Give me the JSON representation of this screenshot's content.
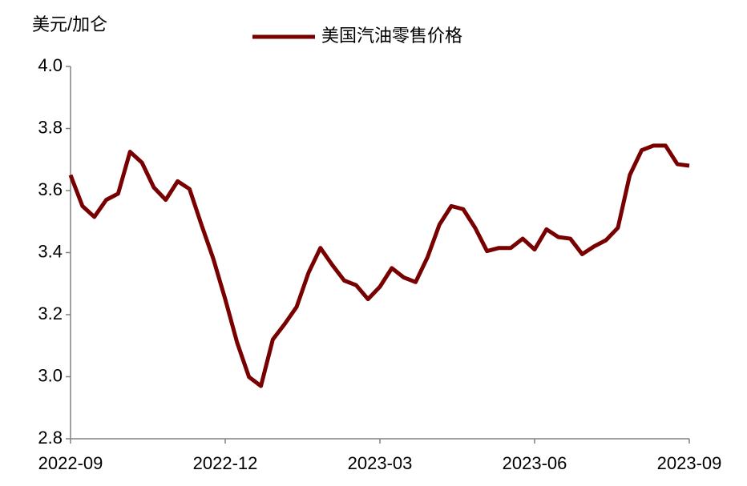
{
  "chart_data": {
    "type": "line",
    "y_label": "美元/加仑",
    "categories": [
      "2022-09",
      null,
      null,
      null,
      null,
      null,
      null,
      null,
      null,
      null,
      null,
      null,
      null,
      "2022-12",
      null,
      null,
      null,
      null,
      null,
      null,
      null,
      null,
      null,
      null,
      null,
      null,
      "2023-03",
      null,
      null,
      null,
      null,
      null,
      null,
      null,
      null,
      null,
      null,
      null,
      null,
      "2023-06",
      null,
      null,
      null,
      null,
      null,
      null,
      null,
      null,
      null,
      null,
      null,
      null,
      "2023-09"
    ],
    "series": [
      {
        "name": "美国汽油零售价格",
        "color": "#780000",
        "values": [
          3.65,
          3.55,
          3.515,
          3.57,
          3.59,
          3.725,
          3.69,
          3.61,
          3.57,
          3.63,
          3.605,
          3.49,
          3.38,
          3.25,
          3.11,
          2.999,
          2.97,
          3.12,
          3.17,
          3.225,
          3.335,
          3.415,
          3.36,
          3.31,
          3.295,
          3.25,
          3.29,
          3.35,
          3.32,
          3.305,
          3.385,
          3.49,
          3.55,
          3.54,
          3.48,
          3.405,
          3.415,
          3.415,
          3.445,
          3.41,
          3.475,
          3.45,
          3.445,
          3.395,
          3.42,
          3.44,
          3.48,
          3.65,
          3.73,
          3.745,
          3.745,
          3.685,
          3.68
        ]
      }
    ],
    "ylim": [
      2.8,
      4.0
    ],
    "yticks": [
      {
        "value": 2.8,
        "label": "2.8"
      },
      {
        "value": 3.0,
        "label": "3.0"
      },
      {
        "value": 3.2,
        "label": "3.2"
      },
      {
        "value": 3.4,
        "label": "3.4"
      },
      {
        "value": 3.6,
        "label": "3.6"
      },
      {
        "value": 3.8,
        "label": "3.8"
      },
      {
        "value": 4.0,
        "label": "4.0"
      }
    ],
    "grid": false,
    "legend": "top"
  }
}
